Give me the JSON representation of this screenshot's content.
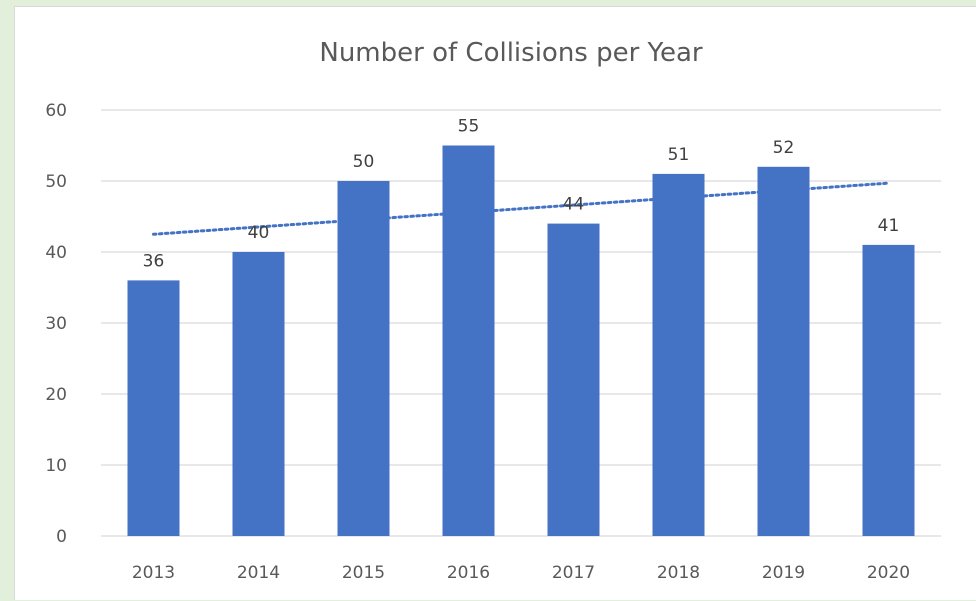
{
  "chart_data": {
    "type": "bar",
    "title": "Number of Collisions per Year",
    "categories": [
      "2013",
      "2014",
      "2015",
      "2016",
      "2017",
      "2018",
      "2019",
      "2020"
    ],
    "values": [
      36,
      40,
      50,
      55,
      44,
      51,
      52,
      41
    ],
    "data_labels": [
      "36",
      "40",
      "50",
      "55",
      "44",
      "51",
      "52",
      "41"
    ],
    "ylim": [
      0,
      60
    ],
    "yticks": [
      "0",
      "10",
      "20",
      "30",
      "40",
      "50",
      "60"
    ],
    "grid": true,
    "trendline": {
      "type": "linear",
      "style": "dotted",
      "from": 42.5,
      "to": 49.7
    },
    "colors": {
      "bar": "#4472c4",
      "trendline": "#4472c4",
      "grid": "#d9d9d9",
      "background": "#e2efda"
    }
  }
}
